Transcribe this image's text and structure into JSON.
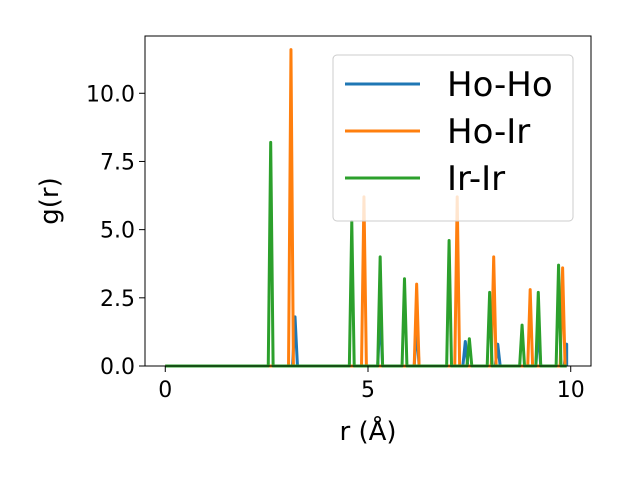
{
  "chart_data": {
    "type": "line",
    "title": "",
    "xlabel": "r (Å)",
    "ylabel": "g(r)",
    "xlim": [
      -0.5,
      10.5
    ],
    "ylim": [
      0,
      12.1
    ],
    "xticks": [
      0,
      5,
      10
    ],
    "xtick_labels": [
      "0",
      "5",
      "10"
    ],
    "yticks": [
      0.0,
      2.5,
      5.0,
      7.5,
      10.0
    ],
    "ytick_labels": [
      "0.0",
      "2.5",
      "5.0",
      "7.5",
      "10.0"
    ],
    "grid": false,
    "legend_position": "top-right",
    "x_range": [
      0,
      9.9
    ],
    "baseline": 0,
    "series": [
      {
        "name": "Ho-Ho",
        "color": "#1f77b4",
        "peaks": [
          [
            3.2,
            1.8
          ],
          [
            5.3,
            2.1
          ],
          [
            6.2,
            1.5
          ],
          [
            7.4,
            0.9
          ],
          [
            8.2,
            0.8
          ],
          [
            9.2,
            1.4
          ],
          [
            9.9,
            0.8
          ]
        ]
      },
      {
        "name": "Ho-Ir",
        "color": "#ff7f0e",
        "peaks": [
          [
            3.1,
            11.6
          ],
          [
            4.9,
            6.2
          ],
          [
            6.2,
            3.0
          ],
          [
            7.2,
            6.2
          ],
          [
            8.1,
            4.0
          ],
          [
            9.0,
            2.8
          ],
          [
            9.8,
            3.6
          ]
        ]
      },
      {
        "name": "Ir-Ir",
        "color": "#2ca02c",
        "peaks": [
          [
            2.6,
            8.2
          ],
          [
            4.6,
            5.3
          ],
          [
            5.3,
            4.0
          ],
          [
            5.9,
            3.2
          ],
          [
            7.0,
            4.6
          ],
          [
            7.5,
            1.0
          ],
          [
            8.0,
            2.7
          ],
          [
            8.8,
            1.5
          ],
          [
            9.2,
            2.7
          ],
          [
            9.7,
            3.7
          ]
        ]
      }
    ]
  }
}
